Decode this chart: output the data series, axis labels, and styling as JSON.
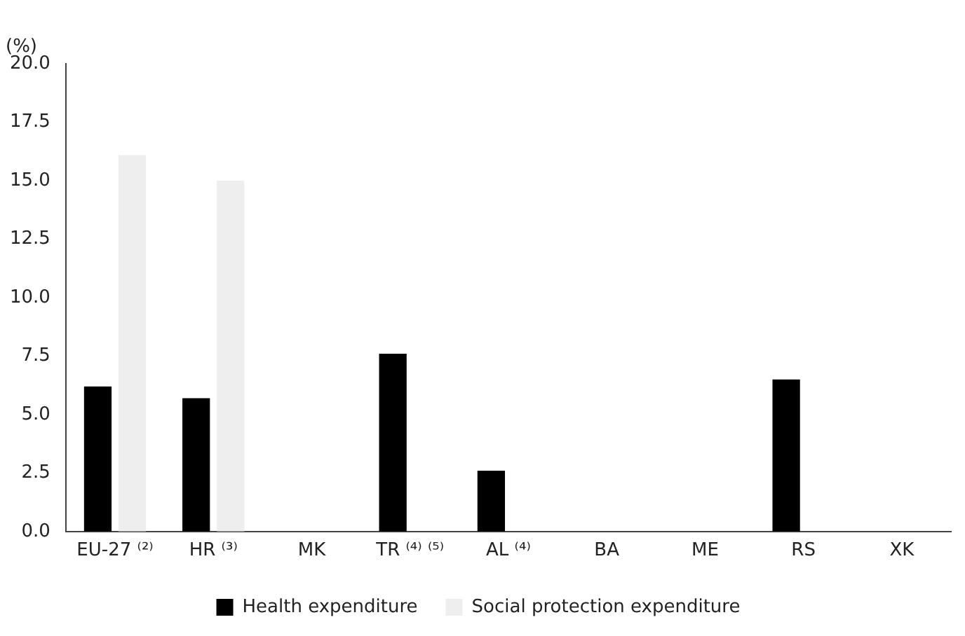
{
  "chart_data": {
    "type": "bar",
    "ylabel": "(%)",
    "categories": [
      "EU-27 ⁽²⁾",
      "HR ⁽³⁾",
      "MK",
      "TR ⁽⁴⁾ ⁽⁵⁾",
      "AL ⁽⁴⁾",
      "BA",
      "ME",
      "RS",
      "XK"
    ],
    "series": [
      {
        "name": "Health expenditure",
        "color": "#000000",
        "values": [
          6.2,
          5.7,
          null,
          7.6,
          2.6,
          null,
          null,
          6.5,
          null
        ]
      },
      {
        "name": "Social protection expenditure",
        "color": "#eeeeee",
        "values": [
          16.1,
          15.0,
          null,
          null,
          null,
          null,
          null,
          null,
          null
        ]
      }
    ],
    "ylim": [
      0,
      20
    ],
    "yticks": [
      {
        "value": 0,
        "label": "0.0"
      },
      {
        "value": 2.5,
        "label": "2.5"
      },
      {
        "value": 5,
        "label": "5.0"
      },
      {
        "value": 7.5,
        "label": "7.5"
      },
      {
        "value": 10,
        "label": "10.0"
      },
      {
        "value": 12.5,
        "label": "12.5"
      },
      {
        "value": 15,
        "label": "15.0"
      },
      {
        "value": 17.5,
        "label": "17.5"
      },
      {
        "value": 20,
        "label": "20.0"
      }
    ],
    "grid": false,
    "legend": "bottom"
  }
}
